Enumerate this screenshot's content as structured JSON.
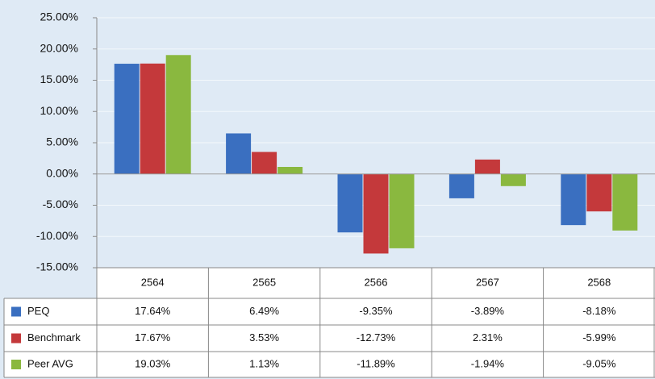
{
  "chart_data": {
    "type": "bar",
    "categories": [
      "2564",
      "2565",
      "2566",
      "2567",
      "2568"
    ],
    "series": [
      {
        "name": "PEQ",
        "color": "#3a6fc0",
        "values": [
          17.64,
          6.49,
          -9.35,
          -3.89,
          -8.18
        ],
        "value_labels": [
          "17.64%",
          "6.49%",
          "-9.35%",
          "-3.89%",
          "-8.18%"
        ]
      },
      {
        "name": "Benchmark",
        "color": "#c4393b",
        "values": [
          17.67,
          3.53,
          -12.73,
          2.31,
          -5.99
        ],
        "value_labels": [
          "17.67%",
          "3.53%",
          "-12.73%",
          "2.31%",
          "-5.99%"
        ]
      },
      {
        "name": "Peer AVG",
        "color": "#8ab83f",
        "values": [
          19.03,
          1.13,
          -11.89,
          -1.94,
          -9.05
        ],
        "value_labels": [
          "19.03%",
          "1.13%",
          "-11.89%",
          "-1.94%",
          "-9.05%"
        ]
      }
    ],
    "ylim": [
      -15,
      25
    ],
    "yticks": [
      {
        "value": -15,
        "label": "-15.00%"
      },
      {
        "value": -10,
        "label": "-10.00%"
      },
      {
        "value": -5,
        "label": "-5.00%"
      },
      {
        "value": 0,
        "label": "0.00%"
      },
      {
        "value": 5,
        "label": "5.00%"
      },
      {
        "value": 10,
        "label": "10.00%"
      },
      {
        "value": 15,
        "label": "15.00%"
      },
      {
        "value": 20,
        "label": "20.00%"
      },
      {
        "value": 25,
        "label": "25.00%"
      }
    ],
    "grid": true
  }
}
